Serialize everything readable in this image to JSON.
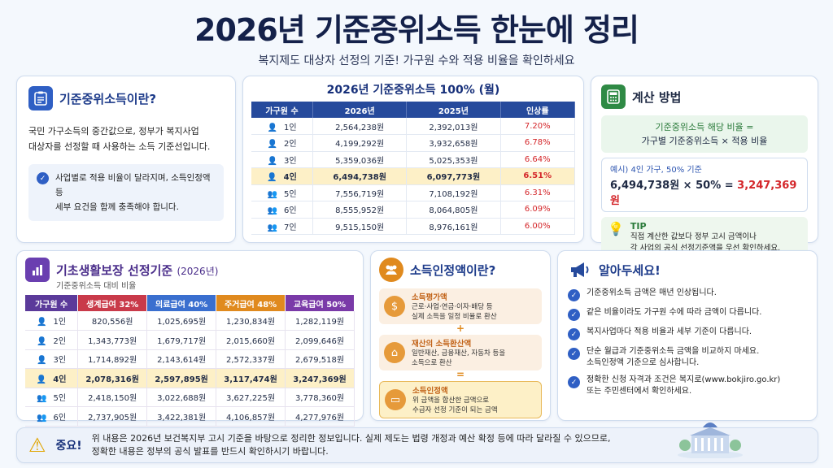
{
  "title": "2026년 기준중위소득 한눈에 정리",
  "subtitle": "복지제도 대상자 선정의 기준! 가구원 수와 적용 비율을 확인하세요",
  "card1": {
    "icon": "clipboard-icon",
    "title": "기준중위소득이란?",
    "desc_line1": "국민 가구소득의 중간값으로, 정부가 복지사업",
    "desc_line2": "대상자를 선정할 때 사용하는 소득 기준선입니다.",
    "note_line1": "사업별로 적용 비율이 달라지며, 소득인정액 등",
    "note_line2": "세부 요건을 함께 충족해야 합니다."
  },
  "main_table": {
    "title": "2026년 기준중위소득 100% (월)",
    "headers": [
      "가구원 수",
      "2026년",
      "2025년",
      "인상률"
    ],
    "rows": [
      {
        "members": "1인",
        "y2026": "2,564,238원",
        "y2025": "2,392,013원",
        "rate": "7.20%"
      },
      {
        "members": "2인",
        "y2026": "4,199,292원",
        "y2025": "3,932,658원",
        "rate": "6.78%"
      },
      {
        "members": "3인",
        "y2026": "5,359,036원",
        "y2025": "5,025,353원",
        "rate": "6.64%"
      },
      {
        "members": "4인",
        "y2026": "6,494,738원",
        "y2025": "6,097,773원",
        "rate": "6.51%"
      },
      {
        "members": "5인",
        "y2026": "7,556,719원",
        "y2025": "7,108,192원",
        "rate": "6.31%"
      },
      {
        "members": "6인",
        "y2026": "8,555,952원",
        "y2025": "8,064,805원",
        "rate": "6.09%"
      },
      {
        "members": "7인",
        "y2026": "9,515,150원",
        "y2025": "8,976,161원",
        "rate": "6.00%"
      }
    ],
    "highlight_row": 3
  },
  "card3": {
    "icon": "calculator-icon",
    "title": "계산 방법",
    "formula_line1": "기준중위소득 해당 비율 =",
    "formula_line2": "가구별 기준중위소득 × 적용 비율",
    "example_label": "예시) 4인 가구, 50% 기준",
    "example_calc": "6,494,738원 × 50% = ",
    "example_result": "3,247,369원",
    "tip_label": "TIP",
    "tip_line1": "직접 계산한 값보다 정부 고시 금액이나",
    "tip_line2": "각 사업의 공식 선정기준액을 우선 확인하세요."
  },
  "card4": {
    "icon": "bar-chart-icon",
    "title": "기초생활보장 선정기준",
    "year": "(2026년)",
    "subtitle": "기준중위소득 대비 비율",
    "headers": [
      "가구원 수",
      "생계급여 32%",
      "의료급여 40%",
      "주거급여 48%",
      "교육급여 50%"
    ],
    "header_colors": [
      "#5b3a9a",
      "#c93a4a",
      "#3a6fcf",
      "#e08a1e",
      "#7a3aa8"
    ],
    "rows": [
      {
        "members": "1인",
        "c1": "820,556원",
        "c2": "1,025,695원",
        "c3": "1,230,834원",
        "c4": "1,282,119원"
      },
      {
        "members": "2인",
        "c1": "1,343,773원",
        "c2": "1,679,717원",
        "c3": "2,015,660원",
        "c4": "2,099,646원"
      },
      {
        "members": "3인",
        "c1": "1,714,892원",
        "c2": "2,143,614원",
        "c3": "2,572,337원",
        "c4": "2,679,518원"
      },
      {
        "members": "4인",
        "c1": "2,078,316원",
        "c2": "2,597,895원",
        "c3": "3,117,474원",
        "c4": "3,247,369원"
      },
      {
        "members": "5인",
        "c1": "2,418,150원",
        "c2": "3,022,688원",
        "c3": "3,627,225원",
        "c4": "3,778,360원"
      },
      {
        "members": "6인",
        "c1": "2,737,905원",
        "c2": "3,422,381원",
        "c3": "4,106,857원",
        "c4": "4,277,976원"
      }
    ],
    "highlight_row": 3
  },
  "card5": {
    "icon": "people-icon",
    "title": "소득인정액이란?",
    "b1_title": "소득평가액",
    "b1_line1": "근로·사업·연금·이자·배당 등",
    "b1_line2": "실제 소득을 일정 비율로 환산",
    "plus": "+",
    "b2_title": "재산의 소득환산액",
    "b2_line1": "일반재산, 금융재산, 자동차 등을",
    "b2_line2": "소득으로 환산",
    "equals": "=",
    "b3_title": "소득인정액",
    "b3_line1": "위 금액을 합산한 금액으로",
    "b3_line2": "수급자 선정 기준이 되는 금액"
  },
  "card6": {
    "icon": "megaphone-icon",
    "title": "알아두세요!",
    "items": [
      [
        "기준중위소득 금액은 매년 인상됩니다.",
        ""
      ],
      [
        "같은 비율이라도 가구원 수에 따라 금액이 다릅니다.",
        ""
      ],
      [
        "복지사업마다 적용 비율과 세부 기준이 다릅니다.",
        ""
      ],
      [
        "단순 월급과 기준중위소득 금액을 비교하지 마세요.",
        "소득인정액 기준으로 심사합니다."
      ],
      [
        "정확한 신청 자격과 조건은 복지로(www.bokjiro.go.kr)",
        "또는 주민센터에서 확인하세요."
      ]
    ]
  },
  "footer": {
    "label": "중요!",
    "line1": "위 내용은 2026년 보건복지부 고시 기준을 바탕으로 정리한 정보입니다. 실제 제도는 법령 개정과 예산 확정 등에 따라 달라질 수 있으므로,",
    "line2": "정확한 내용은 정부의 공식 발표를 반드시 확인하시기 바랍니다."
  }
}
